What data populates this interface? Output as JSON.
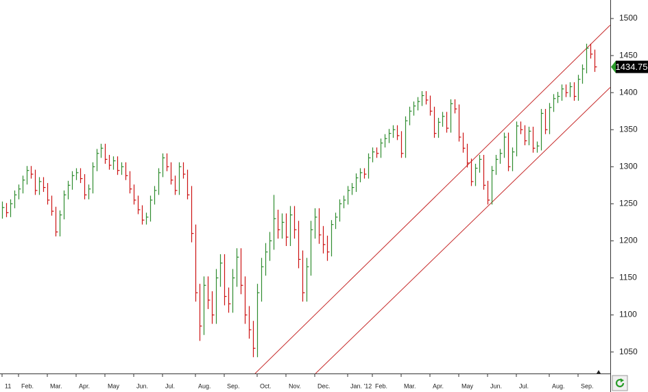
{
  "chart_data": {
    "type": "ohlc",
    "categories": [
      "11",
      null,
      null,
      null,
      "Feb.",
      null,
      null,
      null,
      null,
      null,
      null,
      "Mar.",
      null,
      null,
      null,
      null,
      null,
      null,
      "Apr.",
      null,
      null,
      null,
      null,
      null,
      null,
      "May",
      null,
      null,
      null,
      null,
      null,
      null,
      "Jun.",
      null,
      null,
      null,
      null,
      null,
      null,
      "Jul.",
      null,
      null,
      null,
      null,
      null,
      null,
      null,
      "Aug.",
      null,
      null,
      null,
      null,
      null,
      null,
      "Sep.",
      null,
      null,
      null,
      null,
      null,
      null,
      null,
      "Oct.",
      null,
      null,
      null,
      null,
      null,
      null,
      "Nov.",
      null,
      null,
      null,
      null,
      null,
      null,
      "Dec.",
      null,
      null,
      null,
      null,
      null,
      null,
      null,
      "Jan. '12",
      null,
      null,
      null,
      null,
      null,
      "Feb.",
      null,
      null,
      null,
      null,
      null,
      null,
      "Mar.",
      null,
      null,
      null,
      null,
      null,
      null,
      "Apr.",
      null,
      null,
      null,
      null,
      null,
      null,
      "May",
      null,
      null,
      null,
      null,
      null,
      null,
      "Jun.",
      null,
      null,
      null,
      null,
      null,
      null,
      "Jul.",
      null,
      null,
      null,
      null,
      null,
      null,
      null,
      "Aug.",
      null,
      null,
      null,
      null,
      null,
      null,
      "Sep.",
      null,
      null,
      null,
      null
    ],
    "high": [
      1253,
      1251,
      1256,
      1268,
      1276,
      1288,
      1301,
      1301,
      1296,
      1286,
      1286,
      1278,
      1261,
      1246,
      1241,
      1268,
      1281,
      1294,
      1298,
      1298,
      1290,
      1276,
      1306,
      1324,
      1331,
      1331,
      1316,
      1314,
      1314,
      1306,
      1306,
      1294,
      1276,
      1261,
      1248,
      1238,
      1261,
      1274,
      1298,
      1318,
      1318,
      1306,
      1288,
      1306,
      1306,
      1296,
      1274,
      1222,
      1142,
      1152,
      1152,
      1132,
      1162,
      1182,
      1182,
      1137,
      1162,
      1190,
      1190,
      1152,
      1112,
      1092,
      1142,
      1177,
      1197,
      1212,
      1262,
      1242,
      1237,
      1237,
      1247,
      1247,
      1227,
      1187,
      1177,
      1227,
      1244,
      1244,
      1220,
      1207,
      1228,
      1238,
      1256,
      1261,
      1274,
      1278,
      1291,
      1298,
      1298,
      1318,
      1326,
      1326,
      1338,
      1344,
      1351,
      1356,
      1356,
      1348,
      1368,
      1381,
      1388,
      1394,
      1402,
      1402,
      1396,
      1381,
      1366,
      1374,
      1374,
      1391,
      1391,
      1384,
      1346,
      1331,
      1311,
      1304,
      1316,
      1316,
      1281,
      1301,
      1316,
      1324,
      1346,
      1346,
      1326,
      1361,
      1361,
      1356,
      1354,
      1354,
      1334,
      1378,
      1378,
      1386,
      1398,
      1401,
      1411,
      1411,
      1414,
      1414,
      1424,
      1438,
      1466,
      1466,
      1458
    ],
    "low": [
      1230,
      1232,
      1232,
      1244,
      1256,
      1264,
      1276,
      1284,
      1262,
      1262,
      1266,
      1249,
      1234,
      1206,
      1206,
      1229,
      1256,
      1269,
      1282,
      1278,
      1256,
      1256,
      1264,
      1294,
      1312,
      1304,
      1296,
      1296,
      1289,
      1289,
      1282,
      1264,
      1249,
      1236,
      1222,
      1222,
      1226,
      1249,
      1262,
      1286,
      1294,
      1276,
      1262,
      1262,
      1284,
      1256,
      1198,
      1118,
      1065,
      1073,
      1108,
      1088,
      1088,
      1138,
      1113,
      1103,
      1103,
      1138,
      1128,
      1088,
      1068,
      1043,
      1043,
      1118,
      1153,
      1173,
      1188,
      1203,
      1203,
      1193,
      1193,
      1203,
      1163,
      1118,
      1118,
      1153,
      1203,
      1196,
      1183,
      1173,
      1179,
      1216,
      1226,
      1244,
      1249,
      1262,
      1266,
      1279,
      1284,
      1284,
      1306,
      1312,
      1312,
      1326,
      1332,
      1339,
      1336,
      1312,
      1312,
      1356,
      1369,
      1376,
      1382,
      1384,
      1369,
      1339,
      1339,
      1354,
      1346,
      1346,
      1372,
      1334,
      1319,
      1299,
      1274,
      1274,
      1292,
      1269,
      1249,
      1249,
      1289,
      1304,
      1312,
      1294,
      1294,
      1314,
      1344,
      1329,
      1329,
      1319,
      1319,
      1322,
      1344,
      1344,
      1374,
      1386,
      1389,
      1394,
      1394,
      1389,
      1389,
      1412,
      1426,
      1446,
      1428
    ],
    "close": [
      1245,
      1238,
      1250,
      1262,
      1270,
      1282,
      1295,
      1290,
      1268,
      1280,
      1272,
      1255,
      1240,
      1212,
      1235,
      1262,
      1275,
      1288,
      1292,
      1284,
      1262,
      1270,
      1300,
      1318,
      1325,
      1310,
      1302,
      1308,
      1295,
      1300,
      1288,
      1270,
      1255,
      1242,
      1228,
      1232,
      1255,
      1268,
      1292,
      1312,
      1300,
      1282,
      1268,
      1300,
      1290,
      1262,
      1210,
      1130,
      1085,
      1140,
      1120,
      1100,
      1150,
      1170,
      1125,
      1115,
      1150,
      1178,
      1140,
      1100,
      1080,
      1055,
      1130,
      1165,
      1185,
      1200,
      1230,
      1215,
      1225,
      1205,
      1235,
      1215,
      1175,
      1130,
      1165,
      1215,
      1232,
      1208,
      1195,
      1185,
      1222,
      1232,
      1250,
      1255,
      1268,
      1272,
      1285,
      1292,
      1290,
      1312,
      1320,
      1318,
      1332,
      1338,
      1345,
      1350,
      1342,
      1318,
      1362,
      1375,
      1382,
      1388,
      1396,
      1390,
      1375,
      1345,
      1360,
      1368,
      1352,
      1385,
      1378,
      1340,
      1325,
      1305,
      1280,
      1298,
      1310,
      1275,
      1255,
      1295,
      1310,
      1318,
      1340,
      1300,
      1320,
      1355,
      1350,
      1335,
      1348,
      1325,
      1328,
      1372,
      1350,
      1380,
      1392,
      1395,
      1405,
      1400,
      1408,
      1395,
      1418,
      1432,
      1460,
      1452,
      1434.75
    ],
    "up_color": "#2e8b2e",
    "down_color": "#cc1111",
    "trendlines": [
      {
        "x": [
          61.5,
          147.8
        ],
        "values": [
          1021,
          1491
        ],
        "color": "#c62828"
      },
      {
        "x": [
          76.2,
          147.8
        ],
        "values": [
          1021,
          1407
        ],
        "color": "#c62828"
      }
    ],
    "ylim": [
      1021,
      1525
    ],
    "yticks": [
      1050,
      1100,
      1150,
      1200,
      1250,
      1300,
      1350,
      1400,
      1450,
      1500
    ],
    "grid": false
  }
}
